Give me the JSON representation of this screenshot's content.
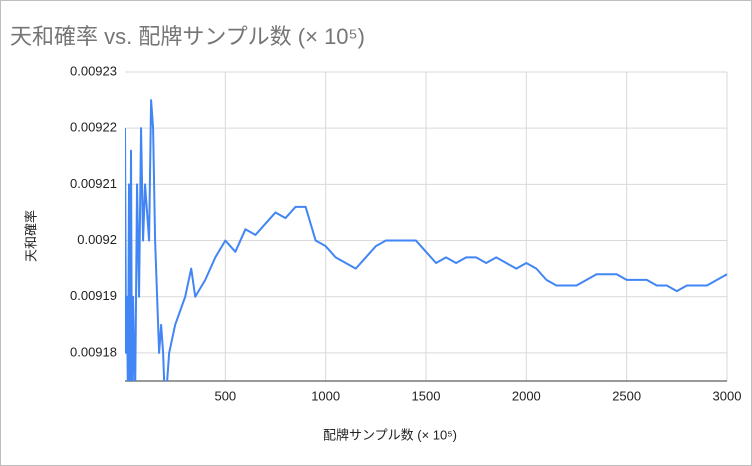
{
  "chart_data": {
    "type": "line",
    "title": "天和確率 vs. 配牌サンプル数 (× 10⁵)",
    "x_label": "配牌サンプル数 (× 10⁵)",
    "y_label": "天和確率",
    "x": [
      0,
      5,
      10,
      15,
      20,
      25,
      30,
      35,
      40,
      50,
      60,
      70,
      80,
      90,
      100,
      110,
      120,
      130,
      140,
      150,
      160,
      170,
      180,
      190,
      200,
      220,
      250,
      300,
      330,
      350,
      400,
      450,
      500,
      550,
      600,
      650,
      700,
      750,
      800,
      850,
      900,
      950,
      1000,
      1050,
      1100,
      1150,
      1200,
      1250,
      1300,
      1350,
      1400,
      1450,
      1500,
      1550,
      1600,
      1650,
      1700,
      1750,
      1800,
      1850,
      1900,
      1950,
      2000,
      2050,
      2100,
      2150,
      2200,
      2250,
      2300,
      2350,
      2400,
      2450,
      2500,
      2550,
      2600,
      2650,
      2700,
      2750,
      2800,
      2850,
      2900,
      2950,
      3000
    ],
    "series": [
      {
        "name": "天和確率",
        "color": "#4285f4",
        "values": [
          0.00922,
          0.00918,
          0.00919,
          0.00917,
          0.00921,
          0.00917,
          0.009216,
          0.00917,
          0.00919,
          0.00917,
          0.00921,
          0.00919,
          0.00922,
          0.0092,
          0.00921,
          0.009205,
          0.0092,
          0.009225,
          0.00922,
          0.0092,
          0.00919,
          0.00918,
          0.009185,
          0.00918,
          0.00917,
          0.00918,
          0.009185,
          0.00919,
          0.009195,
          0.00919,
          0.009193,
          0.009197,
          0.0092,
          0.009198,
          0.009202,
          0.009201,
          0.009203,
          0.009205,
          0.009204,
          0.009206,
          0.009206,
          0.0092,
          0.009199,
          0.009197,
          0.009196,
          0.009195,
          0.009197,
          0.009199,
          0.0092,
          0.0092,
          0.0092,
          0.0092,
          0.009198,
          0.009196,
          0.009197,
          0.009196,
          0.009197,
          0.009197,
          0.009196,
          0.009197,
          0.009196,
          0.009195,
          0.009196,
          0.009195,
          0.009193,
          0.009192,
          0.009192,
          0.009192,
          0.009193,
          0.009194,
          0.009194,
          0.009194,
          0.009193,
          0.009193,
          0.009193,
          0.009192,
          0.009192,
          0.009191,
          0.009192,
          0.009192,
          0.009192,
          0.009193,
          0.009194
        ]
      }
    ],
    "xlim": [
      0,
      3000
    ],
    "xticks": [
      500,
      1000,
      1500,
      2000,
      2500,
      3000
    ],
    "ylim": [
      0.009175,
      0.00923
    ],
    "yticks": [
      0.00918,
      0.00919,
      0.0092,
      0.00921,
      0.00922,
      0.00923
    ],
    "grid": true
  }
}
